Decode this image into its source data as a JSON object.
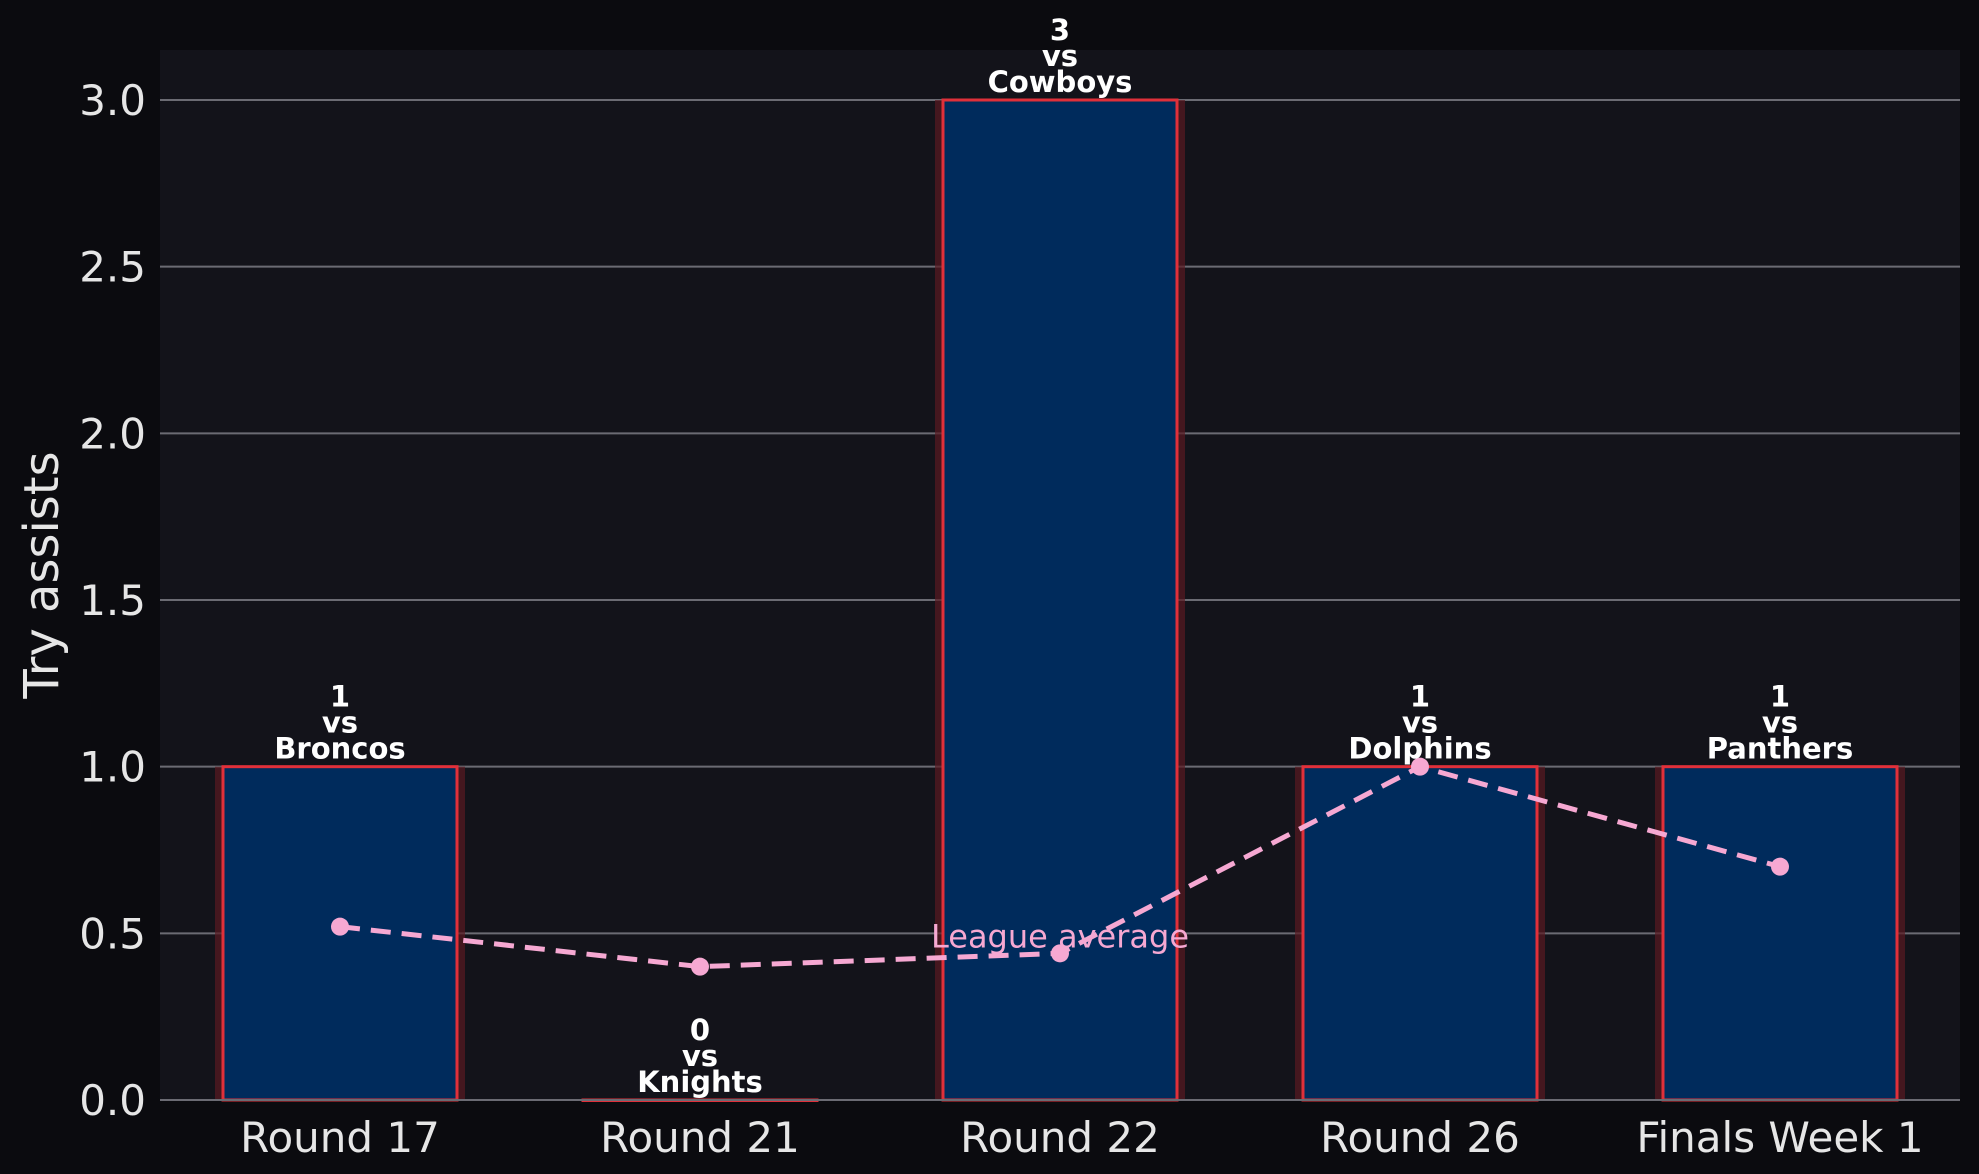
{
  "chart_data": {
    "type": "bar",
    "categories": [
      "Round 17",
      "Round 21",
      "Round 22",
      "Round 26",
      "Finals Week 1"
    ],
    "opponents": [
      "Broncos",
      "Knights",
      "Cowboys",
      "Dolphins",
      "Panthers"
    ],
    "vs_text": "vs",
    "values": [
      1,
      0,
      3,
      1,
      1
    ],
    "overlay_line": {
      "name": "League average",
      "values": [
        0.52,
        0.4,
        0.44,
        1.0,
        0.7
      ]
    },
    "title": "",
    "xlabel": "",
    "ylabel": "Try assists",
    "ylim": [
      0,
      3.15
    ],
    "yticks": [
      0.0,
      0.5,
      1.0,
      1.5,
      2.0,
      2.5,
      3.0
    ],
    "ytick_labels": [
      "0.0",
      "0.5",
      "1.0",
      "1.5",
      "2.0",
      "2.5",
      "3.0"
    ],
    "grid": "horizontal",
    "colors": {
      "background": "#0b0b0f",
      "plot_background": "#13131a",
      "bar_fill": "#002b5c",
      "bar_edge": "#e0303a",
      "bar_glow": "#5a1a22",
      "line": "#f6a8d2",
      "grid": "#6b6b73",
      "text": "#e6e6e6"
    }
  }
}
